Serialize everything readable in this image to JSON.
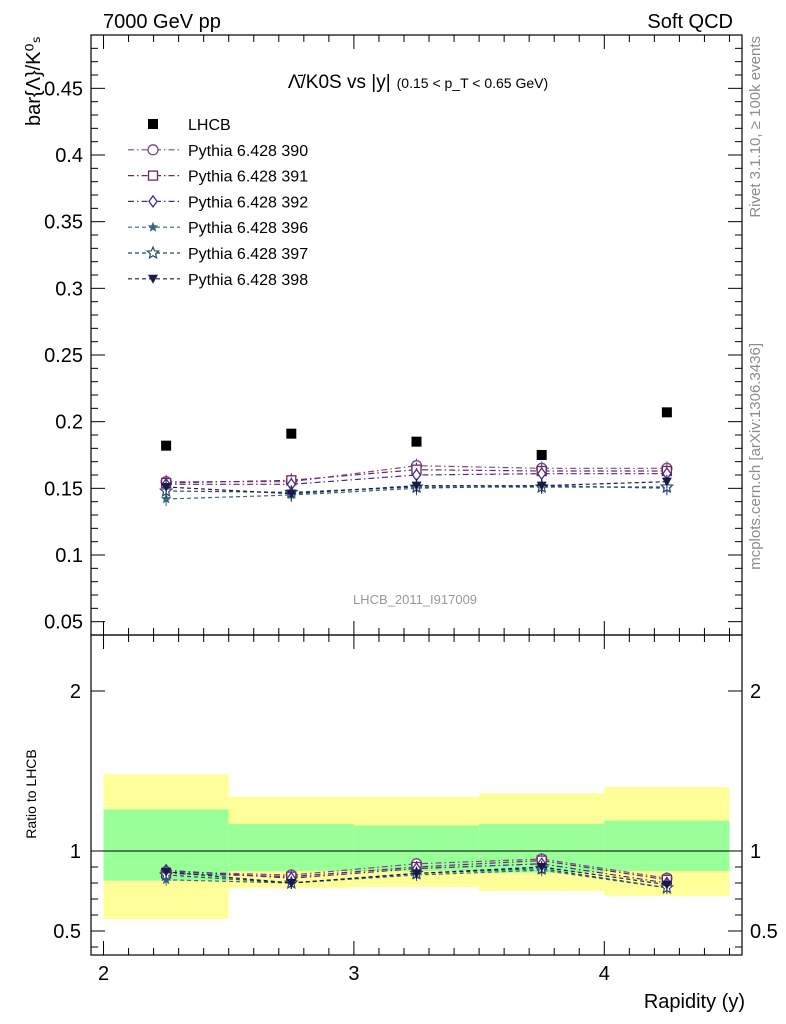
{
  "header": {
    "left": "7000 GeV pp",
    "right": "Soft QCD"
  },
  "side_text": {
    "top": "Rivet 3.1.10, ≥ 100k events",
    "bottom": "mcplots.cern.ch [arXiv:1306.3436]"
  },
  "watermark": "LHCB_2011_I917009",
  "colors": {
    "band_outer": "#ffff99",
    "band_inner": "#99ff99",
    "p390": "#7a4a8a",
    "p391": "#6a2a5a",
    "p392": "#4a2a8a",
    "p396": "#3a6a7a",
    "p397": "#2a4a6a",
    "p398": "#1a1a4a"
  },
  "chart_data": [
    {
      "type": "scatter",
      "title_main": "Λ̄/K0S vs |y|",
      "title_sub": "(0.15 < p_T < 0.65 GeV)",
      "ylabel": "bar{Λ}/K⁰ₛ",
      "xlim": [
        1.95,
        4.55
      ],
      "ylim": [
        0.04,
        0.49
      ],
      "yticks": [
        "0.05",
        "0.1",
        "0.15",
        "0.2",
        "0.25",
        "0.3",
        "0.35",
        "0.4",
        "0.45"
      ],
      "x": [
        2.25,
        2.75,
        3.25,
        3.75,
        4.25
      ],
      "series": [
        {
          "name": "LHCB",
          "key": "lhcb",
          "marker": "square-filled",
          "values": [
            0.182,
            0.191,
            0.185,
            0.175,
            0.207
          ]
        },
        {
          "name": "Pythia 6.428 390",
          "key": "p390",
          "marker": "circle-open",
          "dash": "dashdot",
          "values": [
            0.155,
            0.155,
            0.167,
            0.165,
            0.165
          ]
        },
        {
          "name": "Pythia 6.428 391",
          "key": "p391",
          "marker": "square-open",
          "dash": "dashdot",
          "values": [
            0.154,
            0.156,
            0.164,
            0.163,
            0.163
          ]
        },
        {
          "name": "Pythia 6.428 392",
          "key": "p392",
          "marker": "diamond-open",
          "dash": "dashdot",
          "values": [
            0.153,
            0.153,
            0.16,
            0.161,
            0.161
          ]
        },
        {
          "name": "Pythia 6.428 396",
          "key": "p396",
          "marker": "star-filled",
          "dash": "dashed",
          "values": [
            0.142,
            0.145,
            0.15,
            0.152,
            0.15
          ]
        },
        {
          "name": "Pythia 6.428 397",
          "key": "p397",
          "marker": "star-open",
          "dash": "dashed",
          "values": [
            0.148,
            0.147,
            0.151,
            0.151,
            0.151
          ]
        },
        {
          "name": "Pythia 6.428 398",
          "key": "p398",
          "marker": "triangle-down-filled",
          "dash": "dashed",
          "values": [
            0.151,
            0.146,
            0.152,
            0.152,
            0.155
          ]
        }
      ]
    },
    {
      "type": "scatter",
      "ylabel": "Ratio to LHCB",
      "xlabel": "Rapidity (y)",
      "xlim": [
        1.95,
        4.55
      ],
      "ylim": [
        0.35,
        2.35
      ],
      "yticks": [
        "0.5",
        "1",
        "2"
      ],
      "xticks": [
        "2",
        "3",
        "4"
      ],
      "bins": [
        [
          2.0,
          2.5
        ],
        [
          2.5,
          3.0
        ],
        [
          3.0,
          3.5
        ],
        [
          3.5,
          4.0
        ],
        [
          4.0,
          4.5
        ]
      ],
      "band_outer": [
        [
          0.575,
          1.48
        ],
        [
          0.77,
          1.34
        ],
        [
          0.775,
          1.34
        ],
        [
          0.75,
          1.36
        ],
        [
          0.72,
          1.4
        ]
      ],
      "band_inner": [
        [
          0.815,
          1.26
        ],
        [
          0.875,
          1.17
        ],
        [
          0.875,
          1.16
        ],
        [
          0.865,
          1.17
        ],
        [
          0.875,
          1.19
        ]
      ],
      "x": [
        2.25,
        2.75,
        3.25,
        3.75,
        4.25
      ],
      "series": [
        {
          "name": "Pythia 6.428 390",
          "key": "p390",
          "values": [
            0.87,
            0.85,
            0.92,
            0.95,
            0.83
          ]
        },
        {
          "name": "Pythia 6.428 391",
          "key": "p391",
          "values": [
            0.86,
            0.84,
            0.9,
            0.94,
            0.82
          ]
        },
        {
          "name": "Pythia 6.428 392",
          "key": "p392",
          "values": [
            0.88,
            0.83,
            0.89,
            0.92,
            0.8
          ]
        },
        {
          "name": "Pythia 6.428 396",
          "key": "p396",
          "values": [
            0.82,
            0.8,
            0.85,
            0.88,
            0.77
          ]
        },
        {
          "name": "Pythia 6.428 397",
          "key": "p397",
          "values": [
            0.85,
            0.8,
            0.86,
            0.89,
            0.77
          ]
        },
        {
          "name": "Pythia 6.428 398",
          "key": "p398",
          "values": [
            0.87,
            0.8,
            0.86,
            0.9,
            0.79
          ]
        }
      ]
    }
  ]
}
